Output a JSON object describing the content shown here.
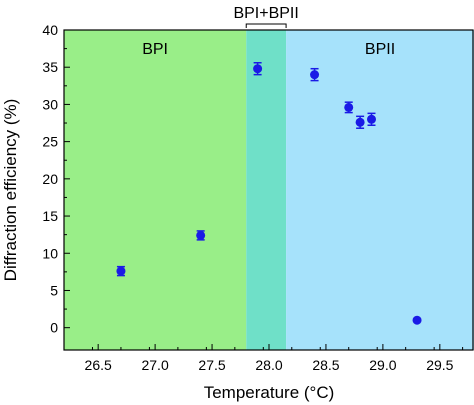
{
  "chart_data": {
    "type": "scatter",
    "xlabel": "Temperature (°C)",
    "ylabel": "Diffraction efficiency (%)",
    "xlim": [
      26.2,
      29.8
    ],
    "ylim": [
      -3,
      40
    ],
    "xticks": [
      "26.5",
      "27.0",
      "27.5",
      "28.0",
      "28.5",
      "29.0",
      "29.5"
    ],
    "yticks": [
      "0",
      "5",
      "10",
      "15",
      "20",
      "25",
      "30",
      "35",
      "40"
    ],
    "regions": [
      {
        "label": "BPI",
        "x_start": 26.2,
        "x_end": 27.8,
        "color": "#99ee88"
      },
      {
        "label": "BPI+BPII",
        "x_start": 27.8,
        "x_end": 28.15,
        "color": "#6fe0c8"
      },
      {
        "label": "BPII",
        "x_start": 28.15,
        "x_end": 29.8,
        "color": "#a6e2fb"
      }
    ],
    "points": [
      {
        "x": 26.7,
        "y": 7.6,
        "err": 0.6
      },
      {
        "x": 27.4,
        "y": 12.4,
        "err": 0.6
      },
      {
        "x": 27.9,
        "y": 34.8,
        "err": 0.8
      },
      {
        "x": 28.4,
        "y": 34.0,
        "err": 0.8
      },
      {
        "x": 28.7,
        "y": 29.6,
        "err": 0.7
      },
      {
        "x": 28.8,
        "y": 27.6,
        "err": 0.8
      },
      {
        "x": 28.9,
        "y": 28.0,
        "err": 0.8
      },
      {
        "x": 29.3,
        "y": 1.0,
        "err": 0
      }
    ],
    "marker_color": "#1a1ae6",
    "grid": false,
    "legend": false
  }
}
